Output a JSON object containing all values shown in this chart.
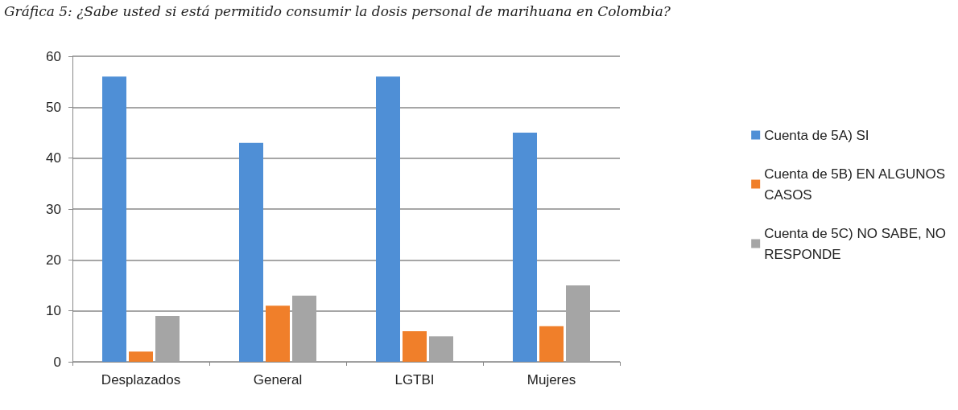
{
  "chart_data": {
    "type": "bar",
    "title": "Gráfica 5: ¿Sabe usted si está permitido consumir la dosis personal de marihuana en Colombia?",
    "categories": [
      "Desplazados",
      "General",
      "LGTBI",
      "Mujeres"
    ],
    "series": [
      {
        "name": "Cuenta de 5A) SI",
        "color": "#4f8fd6",
        "values": [
          56,
          43,
          56,
          45
        ]
      },
      {
        "name": "Cuenta de 5B) EN ALGUNOS CASOS",
        "color": "#f07f2a",
        "values": [
          2,
          11,
          6,
          7
        ]
      },
      {
        "name": "Cuenta de 5C) NO SABE, NO RESPONDE",
        "color": "#a5a5a5",
        "values": [
          9,
          13,
          5,
          15
        ]
      }
    ],
    "ylim": [
      0,
      60
    ],
    "yticks": [
      0,
      10,
      20,
      30,
      40,
      50,
      60
    ],
    "grid": "y",
    "legend": "right"
  }
}
